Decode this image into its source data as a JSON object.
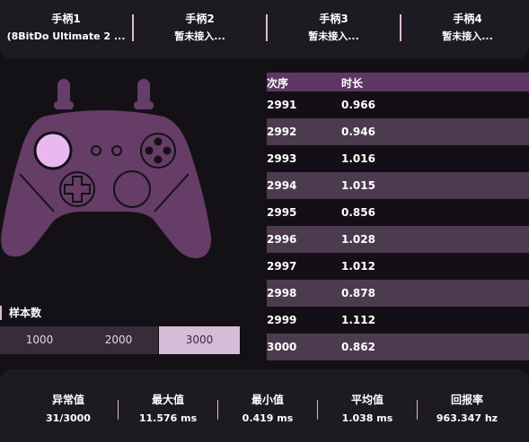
{
  "controllers": [
    {
      "name": "手柄1",
      "status": "(8BitDo Ultimate 2 ..."
    },
    {
      "name": "手柄2",
      "status": "暂未接入..."
    },
    {
      "name": "手柄3",
      "status": "暂未接入..."
    },
    {
      "name": "手柄4",
      "status": "暂未接入..."
    }
  ],
  "table": {
    "headers": [
      "次序",
      "时长"
    ],
    "rows": [
      {
        "seq": "2991",
        "duration": "0.966"
      },
      {
        "seq": "2992",
        "duration": "0.946"
      },
      {
        "seq": "2993",
        "duration": "1.016"
      },
      {
        "seq": "2994",
        "duration": "1.015"
      },
      {
        "seq": "2995",
        "duration": "0.856"
      },
      {
        "seq": "2996",
        "duration": "1.028"
      },
      {
        "seq": "2997",
        "duration": "1.012"
      },
      {
        "seq": "2998",
        "duration": "0.878"
      },
      {
        "seq": "2999",
        "duration": "1.112"
      },
      {
        "seq": "3000",
        "duration": "0.862"
      }
    ]
  },
  "samples": {
    "label": "样本数",
    "options": [
      "1000",
      "2000",
      "3000"
    ],
    "selected": "3000"
  },
  "stats": [
    {
      "label": "异常值",
      "value": "31/3000"
    },
    {
      "label": "最大值",
      "value": "11.576 ms"
    },
    {
      "label": "最小值",
      "value": "0.419 ms"
    },
    {
      "label": "平均值",
      "value": "1.038 ms"
    },
    {
      "label": "回报率",
      "value": "963.347 hz"
    }
  ],
  "colors": {
    "background": "#141116",
    "panel": "#1e1a21",
    "accent": "#5e3764",
    "controller": "#653d67",
    "highlight": "#eab7f0",
    "selected": "#d5bcd7"
  },
  "icons": {
    "controller": "gamepad-icon",
    "dpad": "dpad-icon"
  }
}
